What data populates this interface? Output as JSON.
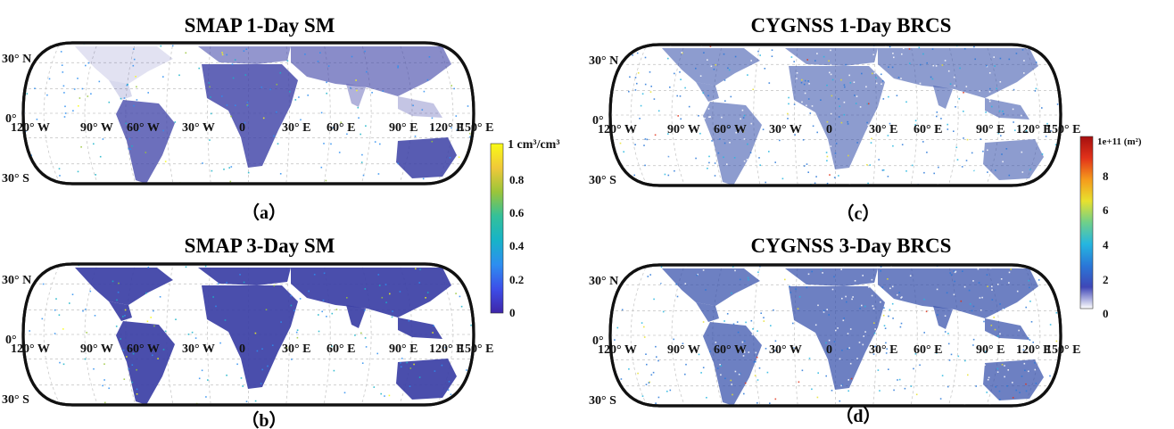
{
  "figure": {
    "panels": [
      {
        "id": "a",
        "title": "SMAP 1-Day SM",
        "label": "（a）",
        "dataset": "SMAP",
        "lat_labels": [
          "30° N",
          "0°",
          "30° S"
        ],
        "lon_labels": [
          "120° W",
          "90° W",
          "60° W",
          "30° W",
          "0",
          "30° E",
          "60° E",
          "90° E",
          "120° E",
          "150° E"
        ],
        "coverage": "sparse",
        "land_color": "#3b3fa5"
      },
      {
        "id": "b",
        "title": "SMAP 3-Day SM",
        "label": "（b）",
        "dataset": "SMAP",
        "lat_labels": [
          "30° N",
          "0°",
          "30° S"
        ],
        "lon_labels": [
          "120° W",
          "90° W",
          "60° W",
          "30° W",
          "0",
          "30° E",
          "60° E",
          "90° E",
          "120° E",
          "150° E"
        ],
        "coverage": "full",
        "land_color": "#3b3fa5"
      },
      {
        "id": "c",
        "title": "CYGNSS 1-Day BRCS",
        "label": "（c）",
        "dataset": "CYGNSS",
        "lat_labels": [
          "30° N",
          "0°",
          "30° S"
        ],
        "lon_labels": [
          "120° W",
          "90° W",
          "60° W",
          "30° W",
          "0",
          "30° E",
          "60° E",
          "90° E",
          "120° E",
          "150° E"
        ],
        "coverage": "speckled",
        "land_color": "#2f4aa8"
      },
      {
        "id": "d",
        "title": "CYGNSS 3-Day BRCS",
        "label": "（d）",
        "dataset": "CYGNSS",
        "lat_labels": [
          "30° N",
          "0°",
          "30° S"
        ],
        "lon_labels": [
          "120° W",
          "90° W",
          "60° W",
          "30° W",
          "0",
          "30° E",
          "60° E",
          "90° E",
          "120° E",
          "150° E"
        ],
        "coverage": "speckled-dense",
        "land_color": "#2f4aa8"
      }
    ],
    "colorbars": [
      {
        "id": "sm",
        "title": "1 cm³/cm³",
        "ticks": [
          "0.8",
          "0.6",
          "0.4",
          "0.2",
          "0"
        ],
        "range": [
          0,
          1
        ],
        "colormap": [
          "#3e26a8",
          "#3d4ee8",
          "#2d8ef0",
          "#17b3c8",
          "#33c09a",
          "#9ac53a",
          "#f0c83a",
          "#f9fb15"
        ]
      },
      {
        "id": "brcs",
        "title": "1e+11 (m²)",
        "ticks": [
          "8",
          "6",
          "4",
          "2",
          "0"
        ],
        "range": [
          0,
          1
        ],
        "colormap": [
          "#ffffff",
          "#3f47b7",
          "#2a78d8",
          "#25b6e0",
          "#6fd08a",
          "#e8e12e",
          "#f59a1c",
          "#e2321a",
          "#a50f0f"
        ]
      }
    ]
  }
}
